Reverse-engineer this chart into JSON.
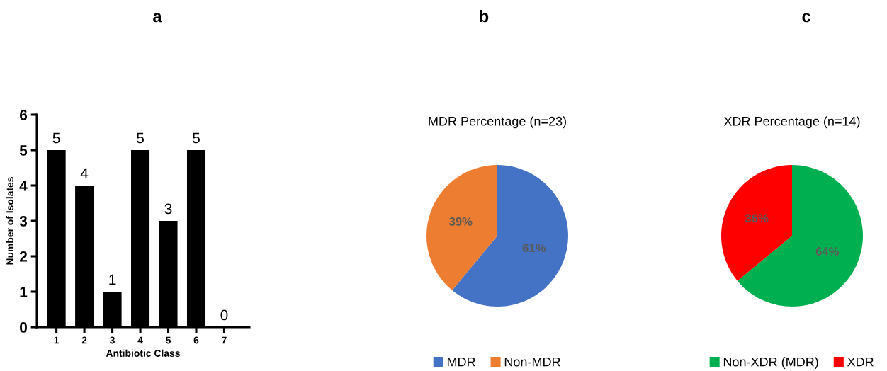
{
  "chart_data": [
    {
      "type": "bar",
      "title": "a",
      "xlabel": "Antibiotic Class",
      "ylabel": "Number of Isolates",
      "categories": [
        "1",
        "2",
        "3",
        "4",
        "5",
        "6",
        "7"
      ],
      "values": [
        5,
        4,
        1,
        5,
        3,
        5,
        0
      ],
      "color": "#000000",
      "ylim": [
        0,
        6
      ],
      "yticks": [
        0,
        1,
        2,
        3,
        4,
        5,
        6
      ],
      "data_labels": true
    },
    {
      "type": "pie",
      "title": "b",
      "subtitle": "MDR Percentage (n=23)",
      "categories": [
        "MDR",
        "Non-MDR"
      ],
      "values": [
        61,
        39
      ],
      "colors": [
        "#4472c4",
        "#ed7d31"
      ],
      "value_labels": [
        "61%",
        "39%"
      ],
      "legend": "bottom"
    },
    {
      "type": "pie",
      "title": "c",
      "subtitle": "XDR Percentage (n=14)",
      "categories": [
        "Non-XDR (MDR)",
        "XDR"
      ],
      "values": [
        64,
        36
      ],
      "colors": [
        "#00b050",
        "#ff0000"
      ],
      "value_labels": [
        "64%",
        "36%"
      ],
      "legend": "bottom"
    }
  ]
}
